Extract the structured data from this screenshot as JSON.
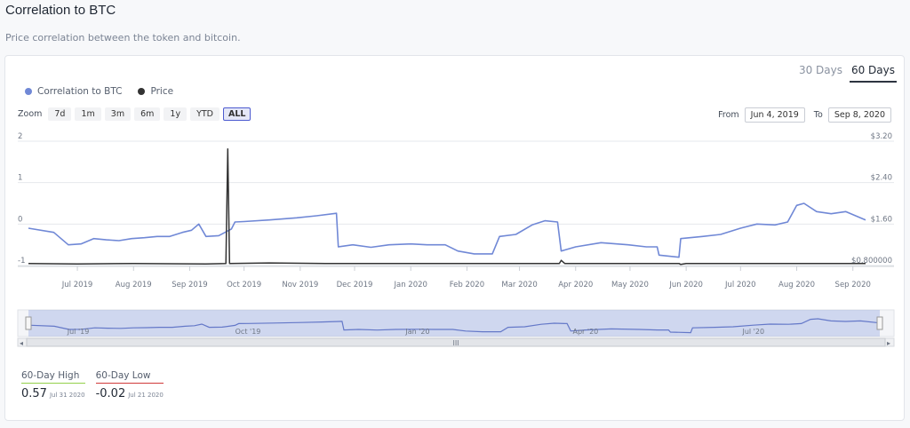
{
  "header": {
    "title": "Correlation to BTC",
    "subtitle": "Price correlation between the token and bitcoin."
  },
  "range_tabs": [
    {
      "label": "30 Days",
      "active": false
    },
    {
      "label": "60 Days",
      "active": true
    }
  ],
  "legend": [
    {
      "label": "Correlation to BTC",
      "color": "#7088d6"
    },
    {
      "label": "Price",
      "color": "#333333"
    }
  ],
  "zoom": {
    "label": "Zoom",
    "buttons": [
      "7d",
      "1m",
      "3m",
      "6m",
      "1y",
      "YTD",
      "ALL"
    ],
    "active": "ALL"
  },
  "date_range": {
    "from_label": "From",
    "from_value": "Jun 4, 2019",
    "to_label": "To",
    "to_value": "Sep 8, 2020"
  },
  "stats": {
    "high": {
      "label": "60-Day High",
      "value": "0.57",
      "date": "Jul 31 2020"
    },
    "low": {
      "label": "60-Day Low",
      "value": "-0.02",
      "date": "Jul 21 2020"
    }
  },
  "chart_data": {
    "type": "line",
    "x_range": [
      "2019-06-04",
      "2020-09-08"
    ],
    "y_left": {
      "ticks": [
        "2",
        "1",
        "0",
        "-1"
      ],
      "range": [
        -1,
        2
      ]
    },
    "y_right": {
      "ticks": [
        "$3.20",
        "$2.40",
        "$1.60",
        "$0.800000"
      ],
      "range": [
        0.8,
        3.2
      ]
    },
    "x_ticks": [
      {
        "date": "2019-07-01",
        "label": "Jul 2019"
      },
      {
        "date": "2019-08-01",
        "label": "Aug 2019"
      },
      {
        "date": "2019-09-01",
        "label": "Sep 2019"
      },
      {
        "date": "2019-10-01",
        "label": "Oct 2019"
      },
      {
        "date": "2019-11-01",
        "label": "Nov 2019"
      },
      {
        "date": "2019-12-01",
        "label": "Dec 2019"
      },
      {
        "date": "2020-01-01",
        "label": "Jan 2020"
      },
      {
        "date": "2020-02-01",
        "label": "Feb 2020"
      },
      {
        "date": "2020-03-01",
        "label": "Mar 2020"
      },
      {
        "date": "2020-04-01",
        "label": "Apr 2020"
      },
      {
        "date": "2020-05-01",
        "label": "May 2020"
      },
      {
        "date": "2020-06-01",
        "label": "Jun 2020"
      },
      {
        "date": "2020-07-01",
        "label": "Jul 2020"
      },
      {
        "date": "2020-08-01",
        "label": "Aug 2020"
      },
      {
        "date": "2020-09-01",
        "label": "Sep 2020"
      }
    ],
    "navigator_ticks": [
      {
        "date": "2019-07-01",
        "label": "Jul '19"
      },
      {
        "date": "2019-10-01",
        "label": "Oct '19"
      },
      {
        "date": "2020-01-01",
        "label": "Jan '20"
      },
      {
        "date": "2020-04-01",
        "label": "Apr '20"
      },
      {
        "date": "2020-07-01",
        "label": "Jul '20"
      }
    ],
    "series": [
      {
        "name": "Correlation to BTC",
        "axis": "left",
        "color": "#7088d6",
        "points": [
          [
            "2019-06-04",
            -0.1
          ],
          [
            "2019-06-18",
            -0.2
          ],
          [
            "2019-06-26",
            -0.5
          ],
          [
            "2019-07-03",
            -0.48
          ],
          [
            "2019-07-10",
            -0.35
          ],
          [
            "2019-07-17",
            -0.38
          ],
          [
            "2019-07-24",
            -0.4
          ],
          [
            "2019-07-31",
            -0.35
          ],
          [
            "2019-08-07",
            -0.33
          ],
          [
            "2019-08-14",
            -0.3
          ],
          [
            "2019-08-21",
            -0.3
          ],
          [
            "2019-08-28",
            -0.2
          ],
          [
            "2019-09-02",
            -0.15
          ],
          [
            "2019-09-06",
            0.0
          ],
          [
            "2019-09-10",
            -0.3
          ],
          [
            "2019-09-17",
            -0.28
          ],
          [
            "2019-09-24",
            -0.12
          ],
          [
            "2019-09-26",
            0.05
          ],
          [
            "2019-10-01",
            0.06
          ],
          [
            "2019-10-15",
            0.1
          ],
          [
            "2019-10-30",
            0.15
          ],
          [
            "2019-11-10",
            0.2
          ],
          [
            "2019-11-21",
            0.26
          ],
          [
            "2019-11-22",
            -0.55
          ],
          [
            "2019-11-30",
            -0.5
          ],
          [
            "2019-12-10",
            -0.56
          ],
          [
            "2019-12-20",
            -0.5
          ],
          [
            "2020-01-01",
            -0.48
          ],
          [
            "2020-01-10",
            -0.5
          ],
          [
            "2020-01-20",
            -0.5
          ],
          [
            "2020-01-27",
            -0.65
          ],
          [
            "2020-02-05",
            -0.72
          ],
          [
            "2020-02-15",
            -0.72
          ],
          [
            "2020-02-19",
            -0.3
          ],
          [
            "2020-02-28",
            -0.25
          ],
          [
            "2020-03-08",
            -0.02
          ],
          [
            "2020-03-15",
            0.08
          ],
          [
            "2020-03-22",
            0.05
          ],
          [
            "2020-03-24",
            -0.65
          ],
          [
            "2020-04-01",
            -0.55
          ],
          [
            "2020-04-15",
            -0.45
          ],
          [
            "2020-04-30",
            -0.5
          ],
          [
            "2020-05-10",
            -0.55
          ],
          [
            "2020-05-16",
            -0.55
          ],
          [
            "2020-05-17",
            -0.75
          ],
          [
            "2020-05-28",
            -0.8
          ],
          [
            "2020-05-29",
            -0.35
          ],
          [
            "2020-06-10",
            -0.3
          ],
          [
            "2020-06-20",
            -0.25
          ],
          [
            "2020-07-01",
            -0.1
          ],
          [
            "2020-07-10",
            0.0
          ],
          [
            "2020-07-20",
            -0.02
          ],
          [
            "2020-07-27",
            0.05
          ],
          [
            "2020-08-01",
            0.45
          ],
          [
            "2020-08-05",
            0.5
          ],
          [
            "2020-08-12",
            0.3
          ],
          [
            "2020-08-20",
            0.25
          ],
          [
            "2020-08-28",
            0.3
          ],
          [
            "2020-09-08",
            0.1
          ]
        ]
      },
      {
        "name": "Price",
        "axis": "right",
        "color": "#333333",
        "points": [
          [
            "2019-06-04",
            0.84
          ],
          [
            "2019-07-01",
            0.83
          ],
          [
            "2019-08-01",
            0.84
          ],
          [
            "2019-09-10",
            0.83
          ],
          [
            "2019-09-21",
            0.84
          ],
          [
            "2019-09-22",
            3.05
          ],
          [
            "2019-09-23",
            0.84
          ],
          [
            "2019-10-15",
            0.85
          ],
          [
            "2019-11-15",
            0.84
          ],
          [
            "2019-12-15",
            0.84
          ],
          [
            "2020-01-15",
            0.84
          ],
          [
            "2020-02-15",
            0.84
          ],
          [
            "2020-03-23",
            0.84
          ],
          [
            "2020-03-24",
            0.9
          ],
          [
            "2020-03-26",
            0.84
          ],
          [
            "2020-05-28",
            0.84
          ],
          [
            "2020-05-29",
            0.82
          ],
          [
            "2020-06-01",
            0.84
          ],
          [
            "2020-07-15",
            0.84
          ],
          [
            "2020-08-15",
            0.84
          ],
          [
            "2020-09-08",
            0.84
          ]
        ]
      }
    ]
  }
}
